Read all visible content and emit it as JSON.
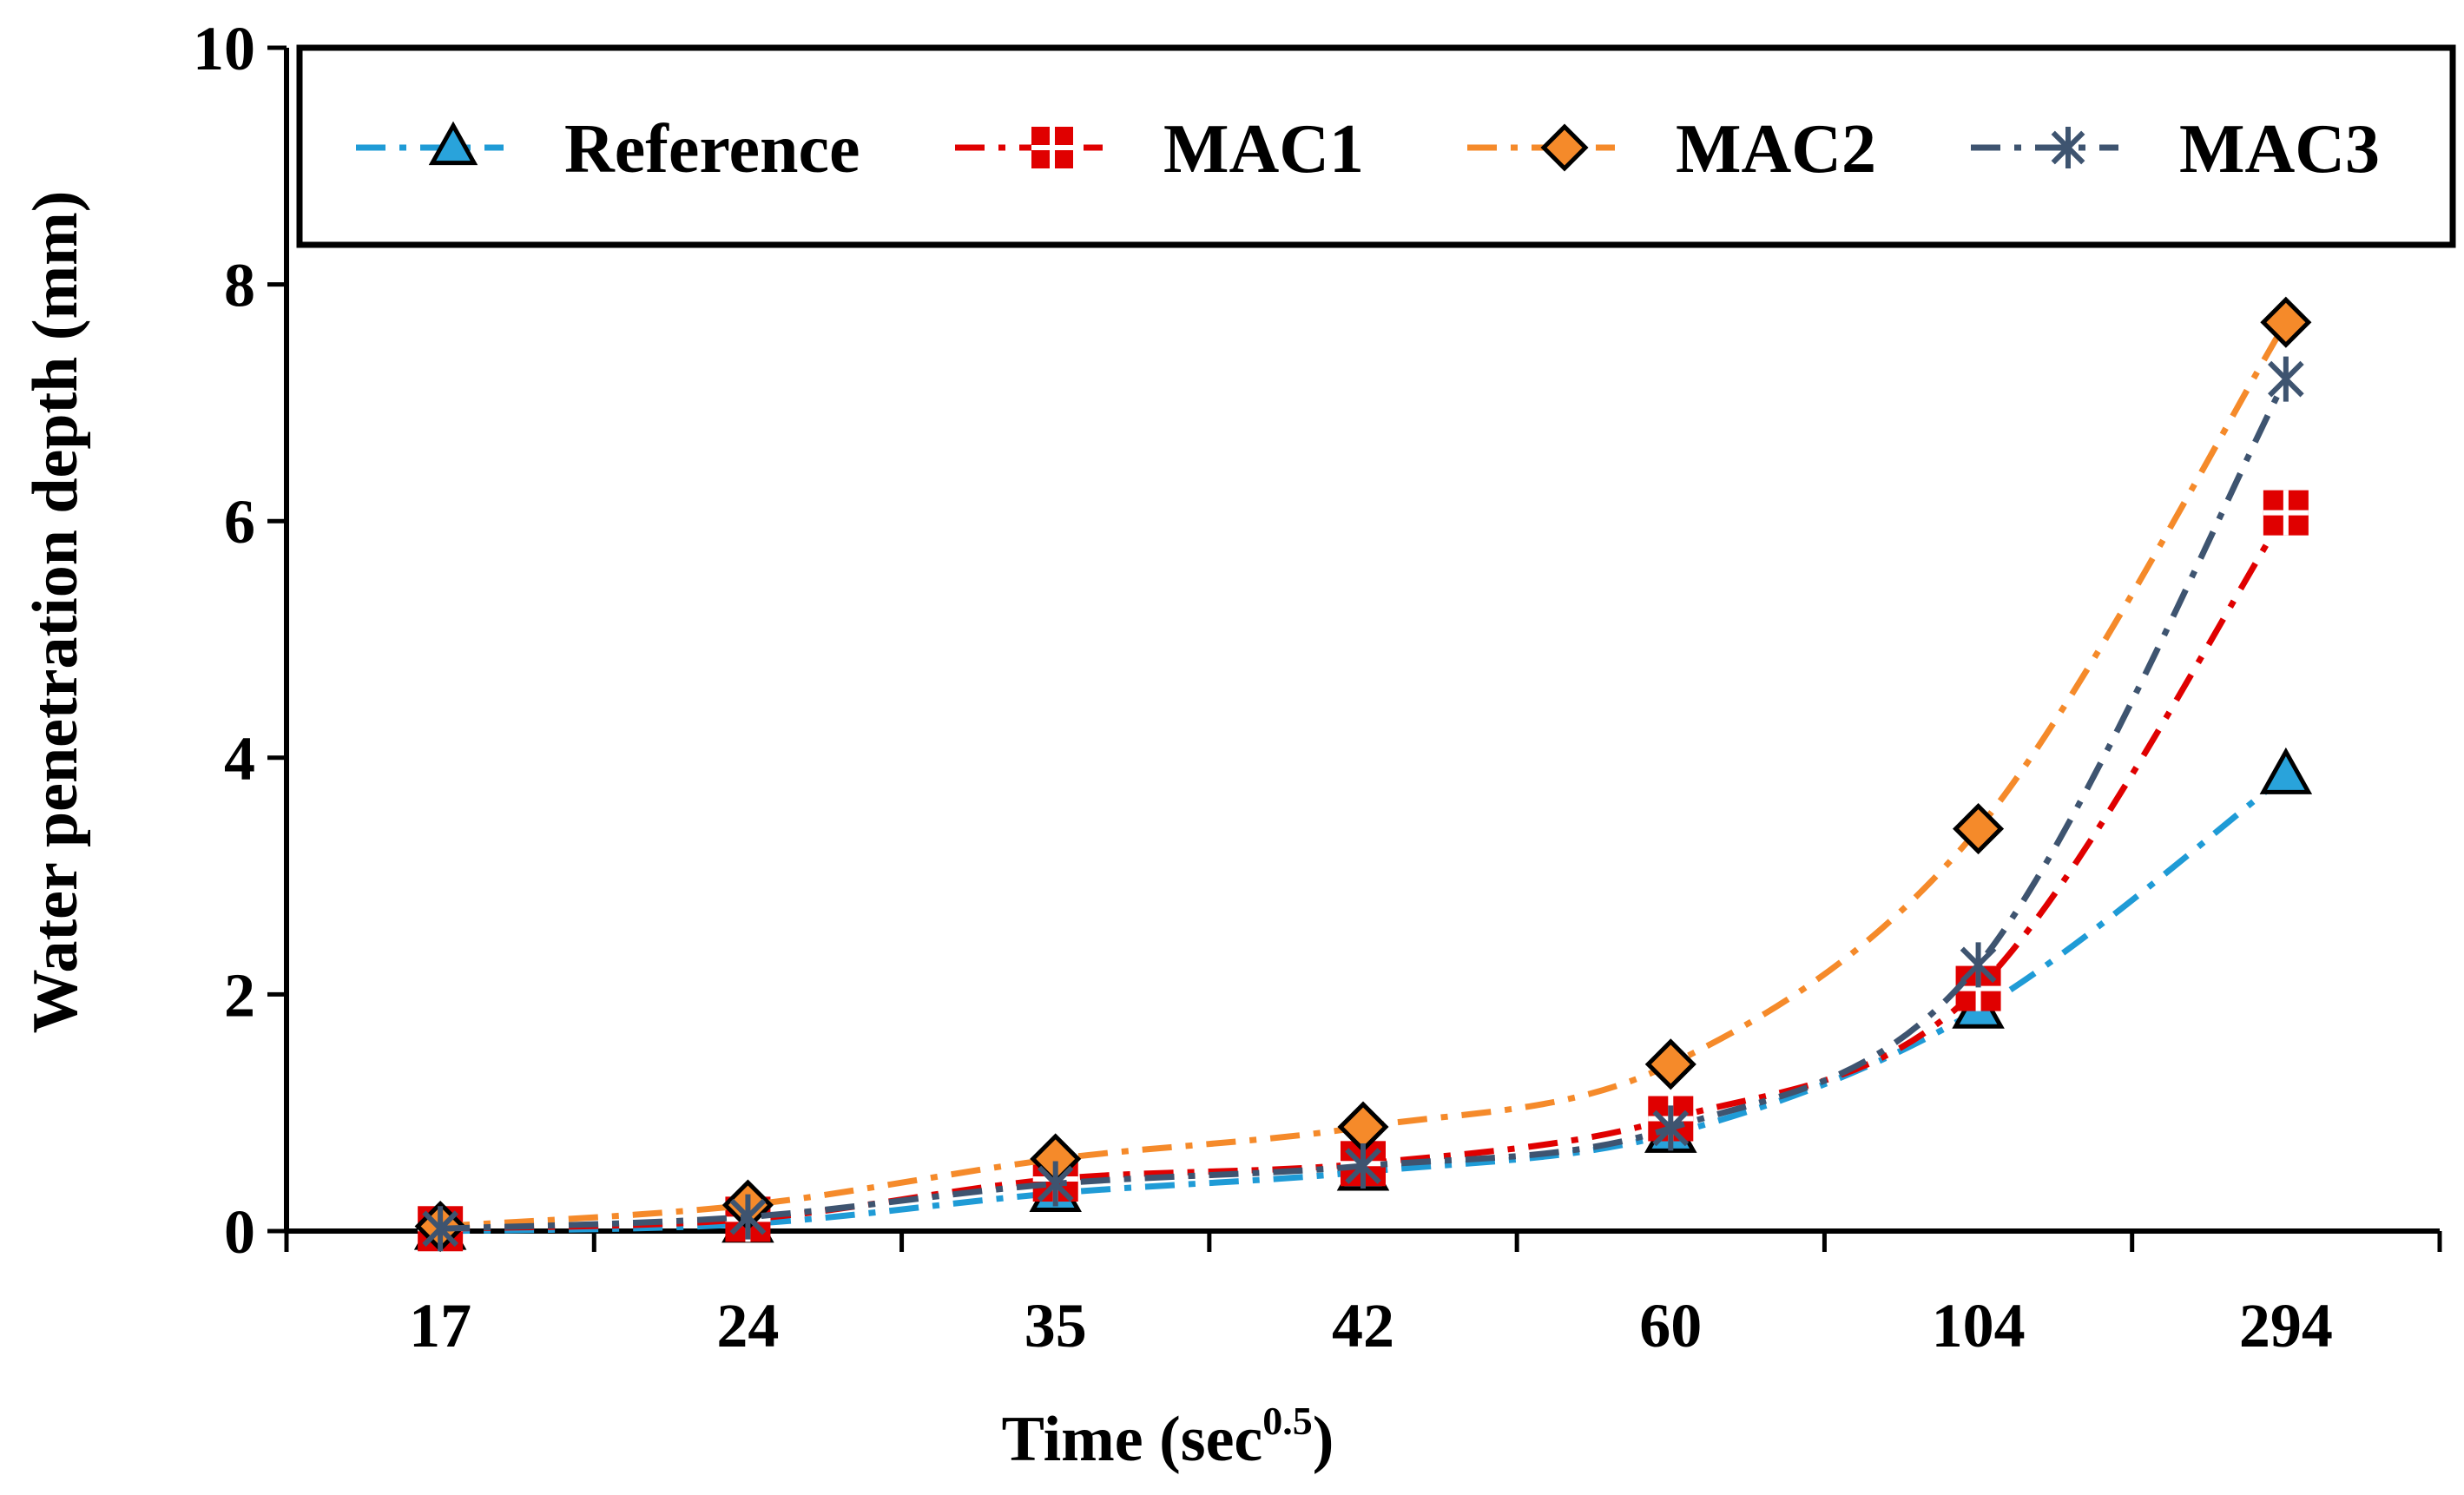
{
  "chart_data": {
    "type": "line",
    "title": "",
    "xlabel": "Time (sec",
    "xlabel_sup": "0.5",
    "xlabel_close": ")",
    "ylabel": "Water penetration depth (mm)",
    "categories": [
      "17",
      "24",
      "35",
      "42",
      "60",
      "104",
      "294"
    ],
    "ylim": [
      0,
      10
    ],
    "yticks": [
      "0",
      "2",
      "4",
      "6",
      "8",
      "10"
    ],
    "legend_position": "top",
    "series": [
      {
        "name": "Reference",
        "color": "#1f9bd6",
        "marker": "triangle",
        "marker_fill": "#29a3db",
        "dash": "dash-dot",
        "values": [
          0.0,
          0.06,
          0.32,
          0.5,
          0.82,
          1.87,
          3.85
        ]
      },
      {
        "name": "MAC1",
        "color": "#e00000",
        "marker": "plus-square",
        "marker_fill": "#e00000",
        "dash": "dash-dot",
        "values": [
          0.02,
          0.1,
          0.44,
          0.57,
          0.95,
          2.05,
          6.07
        ]
      },
      {
        "name": "MAC2",
        "color": "#f58a2a",
        "marker": "diamond",
        "marker_fill": "#f58a2a",
        "dash": "dash-dot",
        "values": [
          0.04,
          0.22,
          0.61,
          0.88,
          1.41,
          3.4,
          7.68
        ]
      },
      {
        "name": "MAC3",
        "color": "#3e5470",
        "marker": "asterisk",
        "marker_fill": "#3e5470",
        "dash": "dash-dot",
        "values": [
          0.02,
          0.12,
          0.4,
          0.55,
          0.87,
          2.25,
          7.2
        ]
      }
    ]
  }
}
